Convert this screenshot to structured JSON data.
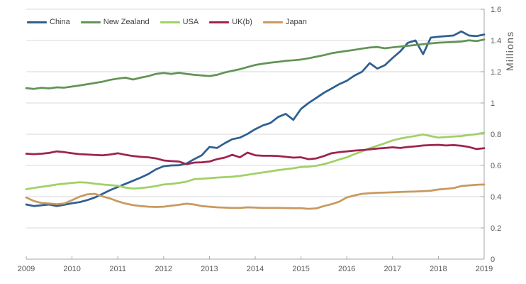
{
  "chart_data": {
    "type": "line",
    "title": "",
    "xlabel": "",
    "ylabel": "Millions",
    "ylim": [
      0,
      1.6
    ],
    "y_tick_step": 0.2,
    "x_start": 2009,
    "x_end": 2019,
    "points_per_year": 6,
    "grid": "horizontal-only",
    "legend_position": "top-left",
    "y_axis_side": "right",
    "x_tick_labels": [
      "2009",
      "2010",
      "2011",
      "2012",
      "2013",
      "2014",
      "2015",
      "2016",
      "2017",
      "2018",
      "2019"
    ],
    "y_tick_labels": [
      "0",
      "0.2",
      "0.4",
      "0.6",
      "0.8",
      "1",
      "1.2",
      "1.4",
      "1.6"
    ],
    "series": [
      {
        "name": "China",
        "color": "#2f5f92",
        "values": [
          0.35,
          0.34,
          0.345,
          0.35,
          0.34,
          0.348,
          0.358,
          0.365,
          0.378,
          0.395,
          0.418,
          0.442,
          0.462,
          0.482,
          0.502,
          0.522,
          0.545,
          0.575,
          0.595,
          0.6,
          0.601,
          0.612,
          0.64,
          0.665,
          0.718,
          0.712,
          0.742,
          0.768,
          0.778,
          0.802,
          0.832,
          0.856,
          0.872,
          0.91,
          0.93,
          0.892,
          0.962,
          1.0,
          1.032,
          1.065,
          1.092,
          1.12,
          1.142,
          1.175,
          1.2,
          1.255,
          1.22,
          1.242,
          1.288,
          1.33,
          1.385,
          1.4,
          1.312,
          1.418,
          1.424,
          1.428,
          1.432,
          1.458,
          1.432,
          1.428,
          1.438
        ]
      },
      {
        "name": "New Zealand",
        "color": "#629455",
        "values": [
          1.095,
          1.09,
          1.097,
          1.093,
          1.1,
          1.098,
          1.105,
          1.112,
          1.12,
          1.128,
          1.136,
          1.148,
          1.156,
          1.162,
          1.15,
          1.162,
          1.172,
          1.186,
          1.192,
          1.186,
          1.193,
          1.186,
          1.18,
          1.176,
          1.172,
          1.18,
          1.195,
          1.206,
          1.216,
          1.23,
          1.243,
          1.251,
          1.258,
          1.263,
          1.27,
          1.273,
          1.278,
          1.286,
          1.296,
          1.306,
          1.318,
          1.326,
          1.333,
          1.34,
          1.348,
          1.355,
          1.358,
          1.35,
          1.356,
          1.361,
          1.366,
          1.371,
          1.376,
          1.381,
          1.386,
          1.388,
          1.39,
          1.393,
          1.401,
          1.396,
          1.406
        ]
      },
      {
        "name": "USA",
        "color": "#9fd166",
        "values": [
          0.448,
          0.456,
          0.463,
          0.47,
          0.478,
          0.483,
          0.488,
          0.492,
          0.49,
          0.483,
          0.478,
          0.474,
          0.47,
          0.458,
          0.452,
          0.455,
          0.46,
          0.468,
          0.478,
          0.482,
          0.488,
          0.496,
          0.512,
          0.515,
          0.518,
          0.522,
          0.525,
          0.528,
          0.533,
          0.54,
          0.548,
          0.555,
          0.562,
          0.57,
          0.576,
          0.582,
          0.59,
          0.592,
          0.598,
          0.608,
          0.622,
          0.638,
          0.652,
          0.672,
          0.69,
          0.71,
          0.726,
          0.742,
          0.76,
          0.772,
          0.781,
          0.789,
          0.798,
          0.788,
          0.778,
          0.782,
          0.785,
          0.788,
          0.795,
          0.8,
          0.81
        ]
      },
      {
        "name": "UK(b)",
        "color": "#9e2350",
        "values": [
          0.675,
          0.672,
          0.675,
          0.68,
          0.69,
          0.685,
          0.678,
          0.672,
          0.67,
          0.667,
          0.665,
          0.67,
          0.678,
          0.668,
          0.66,
          0.655,
          0.652,
          0.645,
          0.632,
          0.628,
          0.625,
          0.608,
          0.618,
          0.62,
          0.625,
          0.64,
          0.65,
          0.668,
          0.652,
          0.682,
          0.665,
          0.662,
          0.662,
          0.66,
          0.655,
          0.65,
          0.652,
          0.64,
          0.645,
          0.66,
          0.678,
          0.685,
          0.69,
          0.695,
          0.698,
          0.703,
          0.708,
          0.712,
          0.716,
          0.712,
          0.718,
          0.722,
          0.728,
          0.73,
          0.732,
          0.728,
          0.73,
          0.726,
          0.718,
          0.705,
          0.71
        ]
      },
      {
        "name": "Japan",
        "color": "#c9995f",
        "values": [
          0.395,
          0.372,
          0.36,
          0.356,
          0.352,
          0.356,
          0.378,
          0.4,
          0.415,
          0.418,
          0.402,
          0.388,
          0.37,
          0.356,
          0.346,
          0.34,
          0.336,
          0.334,
          0.336,
          0.342,
          0.348,
          0.355,
          0.35,
          0.34,
          0.336,
          0.332,
          0.33,
          0.328,
          0.328,
          0.332,
          0.33,
          0.328,
          0.328,
          0.328,
          0.327,
          0.326,
          0.326,
          0.322,
          0.325,
          0.34,
          0.352,
          0.368,
          0.395,
          0.408,
          0.418,
          0.422,
          0.425,
          0.426,
          0.428,
          0.43,
          0.432,
          0.433,
          0.435,
          0.438,
          0.446,
          0.45,
          0.455,
          0.468,
          0.472,
          0.476,
          0.478
        ]
      }
    ]
  },
  "axes": {
    "unit_label": "Millions"
  },
  "style": {
    "grid_color": "#d9d9d9",
    "axis_color": "#a6a6a6",
    "text_color": "#595959",
    "legend_text_color": "#404040",
    "background": "#ffffff"
  }
}
